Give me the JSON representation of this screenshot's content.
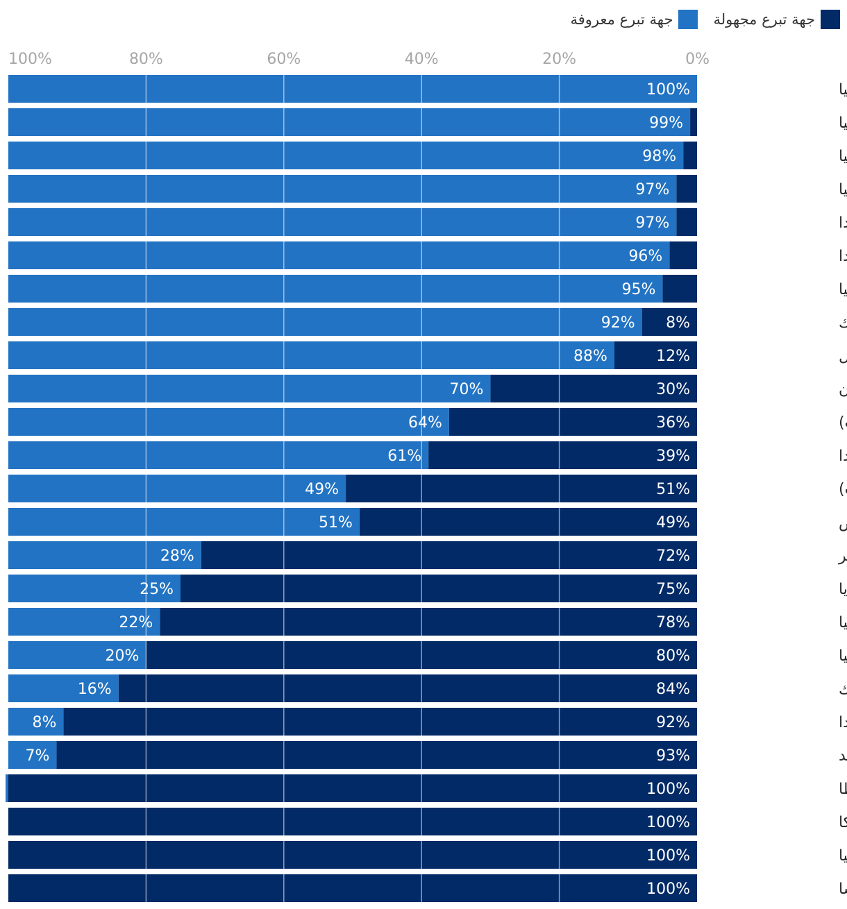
{
  "colors": {
    "unknown": "#022a66",
    "known": "#2273c3",
    "grid": "#ffffff",
    "tick_text": "#a6a6a6",
    "label_text": "#2a2a2a",
    "value_text": "#ffffff"
  },
  "chart_data": {
    "type": "bar",
    "orientation": "horizontal",
    "stacked": true,
    "percent": true,
    "x_reversed": true,
    "xlim": [
      0,
      100
    ],
    "xticks": [
      "0%",
      "20%",
      "40%",
      "60%",
      "80%",
      "100%"
    ],
    "grid": true,
    "legend_position": "top-right",
    "categories": [
      "ليتوانيا",
      "إستونيا",
      "رومانيا",
      "كرواتيا",
      "فنلندا",
      "بولندا",
      "سلوفاكيا",
      "جمهورية التشيك",
      "البرتغال",
      "اليونان",
      "سويسرا (الأحزاب)",
      "هولندا",
      "سويسرا (الاقتراعات)",
      "قبرص",
      "المجر",
      "بلغاريا",
      "ألمانيا",
      "سلوفاكيا",
      "الدانمارك",
      "إيرلندا",
      "السويد",
      "مالطا",
      "بلجيكا",
      "إسبانيا",
      "فرنسا"
    ],
    "series": [
      {
        "name": "جهة تبرع مجهولة",
        "values": [
          0,
          1,
          2,
          3,
          3,
          4,
          5,
          8,
          12,
          30,
          36,
          39,
          51,
          49,
          72,
          75,
          78,
          80,
          84,
          92,
          93,
          100,
          100,
          100,
          100
        ],
        "labels": [
          "",
          "",
          "",
          "",
          "",
          "",
          "",
          "8%",
          "12%",
          "30%",
          "36%",
          "39%",
          "51%",
          "49%",
          "72%",
          "75%",
          "78%",
          "80%",
          "84%",
          "92%",
          "93%",
          "100%",
          "100%",
          "100%",
          "100%"
        ]
      },
      {
        "name": "جهة تبرع معروفة",
        "values": [
          100,
          99,
          98,
          97,
          97,
          96,
          95,
          92,
          88,
          70,
          64,
          61,
          49,
          51,
          28,
          25,
          22,
          20,
          16,
          8,
          7,
          0.4,
          0,
          0,
          0
        ],
        "labels": [
          "100%",
          "99%",
          "98%",
          "97%",
          "97%",
          "96%",
          "95%",
          "92%",
          "88%",
          "70%",
          "64%",
          "61%",
          "49%",
          "51%",
          "28%",
          "25%",
          "22%",
          "20%",
          "16%",
          "8%",
          "7%",
          "",
          "",
          "",
          ""
        ]
      }
    ]
  }
}
